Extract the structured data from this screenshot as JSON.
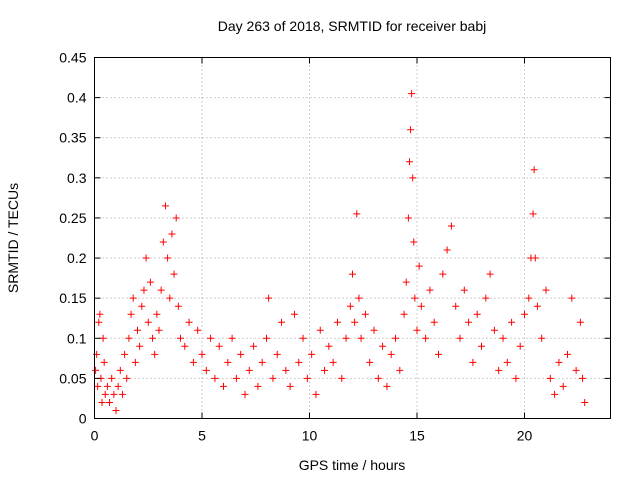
{
  "chart_data": {
    "type": "scatter",
    "title": "Day 263 of 2018, SRMTID for receiver babj",
    "xlabel": "GPS time / hours",
    "ylabel": "SRMTID / TECUs",
    "xlim": [
      0,
      24
    ],
    "ylim": [
      0,
      0.45
    ],
    "xticks": [
      0,
      5,
      10,
      15,
      20
    ],
    "yticks": [
      0,
      0.05,
      0.1,
      0.15,
      0.2,
      0.25,
      0.3,
      0.35,
      0.4,
      0.45
    ],
    "ytick_labels": [
      "0",
      "0.05",
      "0.1",
      "0.15",
      "0.2",
      "0.25",
      "0.3",
      "0.35",
      "0.4",
      "0.45"
    ],
    "xtick_labels": [
      "0",
      "5",
      "10",
      "15",
      "20"
    ],
    "grid": true,
    "marker": "+",
    "marker_color": "#ff0000",
    "series": [
      {
        "values": [
          [
            0.05,
            0.06
          ],
          [
            0.1,
            0.08
          ],
          [
            0.15,
            0.04
          ],
          [
            0.2,
            0.12
          ],
          [
            0.25,
            0.13
          ],
          [
            0.3,
            0.05
          ],
          [
            0.35,
            0.02
          ],
          [
            0.4,
            0.1
          ],
          [
            0.45,
            0.07
          ],
          [
            0.5,
            0.03
          ],
          [
            0.6,
            0.04
          ],
          [
            0.7,
            0.02
          ],
          [
            0.8,
            0.05
          ],
          [
            0.9,
            0.03
          ],
          [
            1.0,
            0.01
          ],
          [
            1.1,
            0.04
          ],
          [
            1.2,
            0.06
          ],
          [
            1.3,
            0.03
          ],
          [
            1.4,
            0.08
          ],
          [
            1.5,
            0.05
          ],
          [
            1.6,
            0.1
          ],
          [
            1.7,
            0.13
          ],
          [
            1.8,
            0.15
          ],
          [
            1.9,
            0.07
          ],
          [
            2.0,
            0.11
          ],
          [
            2.1,
            0.09
          ],
          [
            2.2,
            0.14
          ],
          [
            2.3,
            0.16
          ],
          [
            2.4,
            0.2
          ],
          [
            2.5,
            0.12
          ],
          [
            2.6,
            0.17
          ],
          [
            2.7,
            0.1
          ],
          [
            2.8,
            0.08
          ],
          [
            2.9,
            0.13
          ],
          [
            3.0,
            0.11
          ],
          [
            3.1,
            0.16
          ],
          [
            3.2,
            0.22
          ],
          [
            3.3,
            0.265
          ],
          [
            3.4,
            0.2
          ],
          [
            3.5,
            0.15
          ],
          [
            3.6,
            0.23
          ],
          [
            3.7,
            0.18
          ],
          [
            3.8,
            0.25
          ],
          [
            3.9,
            0.14
          ],
          [
            4.0,
            0.1
          ],
          [
            4.2,
            0.09
          ],
          [
            4.4,
            0.12
          ],
          [
            4.6,
            0.07
          ],
          [
            4.8,
            0.11
          ],
          [
            5.0,
            0.08
          ],
          [
            5.2,
            0.06
          ],
          [
            5.4,
            0.1
          ],
          [
            5.6,
            0.05
          ],
          [
            5.8,
            0.09
          ],
          [
            6.0,
            0.04
          ],
          [
            6.2,
            0.07
          ],
          [
            6.4,
            0.1
          ],
          [
            6.6,
            0.05
          ],
          [
            6.8,
            0.08
          ],
          [
            7.0,
            0.03
          ],
          [
            7.2,
            0.06
          ],
          [
            7.4,
            0.09
          ],
          [
            7.6,
            0.04
          ],
          [
            7.8,
            0.07
          ],
          [
            8.0,
            0.1
          ],
          [
            8.1,
            0.15
          ],
          [
            8.3,
            0.05
          ],
          [
            8.5,
            0.08
          ],
          [
            8.7,
            0.12
          ],
          [
            8.9,
            0.06
          ],
          [
            9.1,
            0.04
          ],
          [
            9.3,
            0.13
          ],
          [
            9.5,
            0.07
          ],
          [
            9.7,
            0.1
          ],
          [
            9.9,
            0.05
          ],
          [
            10.1,
            0.08
          ],
          [
            10.3,
            0.03
          ],
          [
            10.5,
            0.11
          ],
          [
            10.7,
            0.06
          ],
          [
            10.9,
            0.09
          ],
          [
            11.1,
            0.07
          ],
          [
            11.3,
            0.12
          ],
          [
            11.5,
            0.05
          ],
          [
            11.7,
            0.1
          ],
          [
            11.9,
            0.14
          ],
          [
            12.0,
            0.18
          ],
          [
            12.1,
            0.12
          ],
          [
            12.2,
            0.255
          ],
          [
            12.3,
            0.15
          ],
          [
            12.4,
            0.1
          ],
          [
            12.6,
            0.13
          ],
          [
            12.8,
            0.07
          ],
          [
            13.0,
            0.11
          ],
          [
            13.2,
            0.05
          ],
          [
            13.4,
            0.09
          ],
          [
            13.6,
            0.04
          ],
          [
            13.8,
            0.08
          ],
          [
            14.0,
            0.1
          ],
          [
            14.2,
            0.06
          ],
          [
            14.4,
            0.13
          ],
          [
            14.5,
            0.17
          ],
          [
            14.6,
            0.25
          ],
          [
            14.65,
            0.32
          ],
          [
            14.7,
            0.36
          ],
          [
            14.75,
            0.405
          ],
          [
            14.8,
            0.3
          ],
          [
            14.85,
            0.22
          ],
          [
            14.9,
            0.15
          ],
          [
            15.0,
            0.11
          ],
          [
            15.1,
            0.19
          ],
          [
            15.2,
            0.14
          ],
          [
            15.4,
            0.1
          ],
          [
            15.6,
            0.16
          ],
          [
            15.8,
            0.12
          ],
          [
            16.0,
            0.08
          ],
          [
            16.2,
            0.18
          ],
          [
            16.4,
            0.21
          ],
          [
            16.6,
            0.24
          ],
          [
            16.8,
            0.14
          ],
          [
            17.0,
            0.1
          ],
          [
            17.2,
            0.16
          ],
          [
            17.4,
            0.12
          ],
          [
            17.6,
            0.07
          ],
          [
            17.8,
            0.13
          ],
          [
            18.0,
            0.09
          ],
          [
            18.2,
            0.15
          ],
          [
            18.4,
            0.18
          ],
          [
            18.6,
            0.11
          ],
          [
            18.8,
            0.06
          ],
          [
            19.0,
            0.1
          ],
          [
            19.2,
            0.07
          ],
          [
            19.4,
            0.12
          ],
          [
            19.6,
            0.05
          ],
          [
            19.8,
            0.09
          ],
          [
            20.0,
            0.13
          ],
          [
            20.2,
            0.15
          ],
          [
            20.3,
            0.2
          ],
          [
            20.4,
            0.255
          ],
          [
            20.45,
            0.31
          ],
          [
            20.5,
            0.2
          ],
          [
            20.6,
            0.14
          ],
          [
            20.8,
            0.1
          ],
          [
            21.0,
            0.16
          ],
          [
            21.2,
            0.05
          ],
          [
            21.4,
            0.03
          ],
          [
            21.6,
            0.07
          ],
          [
            21.8,
            0.04
          ],
          [
            22.0,
            0.08
          ],
          [
            22.2,
            0.15
          ],
          [
            22.4,
            0.06
          ],
          [
            22.6,
            0.12
          ],
          [
            22.7,
            0.05
          ],
          [
            22.8,
            0.02
          ]
        ]
      }
    ]
  }
}
